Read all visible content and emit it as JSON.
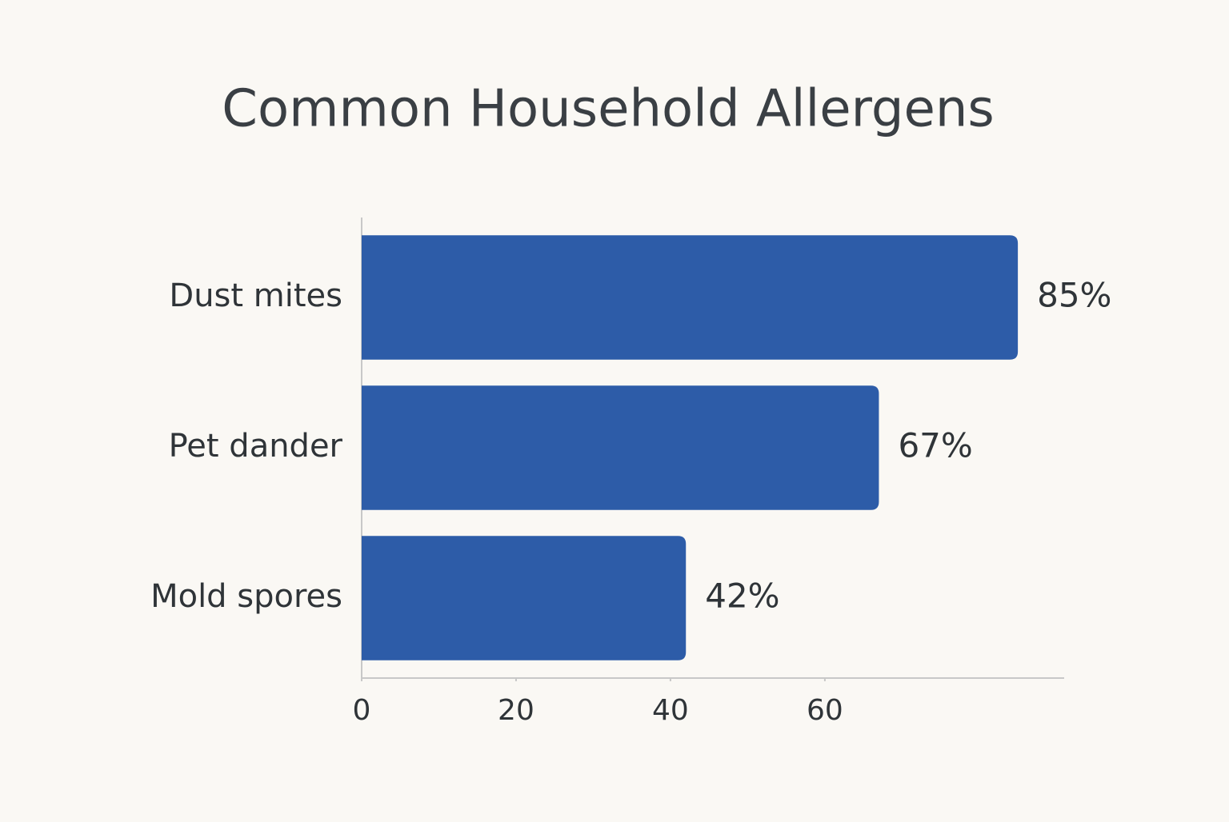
{
  "chart_data": {
    "type": "bar",
    "orientation": "horizontal",
    "title": "Common Household Allergens",
    "categories": [
      "Dust mites",
      "Pet dander",
      "Mold spores"
    ],
    "values": [
      85,
      67,
      42
    ],
    "value_labels": [
      "85%",
      "67%",
      "42%"
    ],
    "color": "#2d5ca8",
    "xlim": [
      0,
      91
    ],
    "xticks": [
      0,
      20,
      40,
      60
    ],
    "grid": false
  }
}
